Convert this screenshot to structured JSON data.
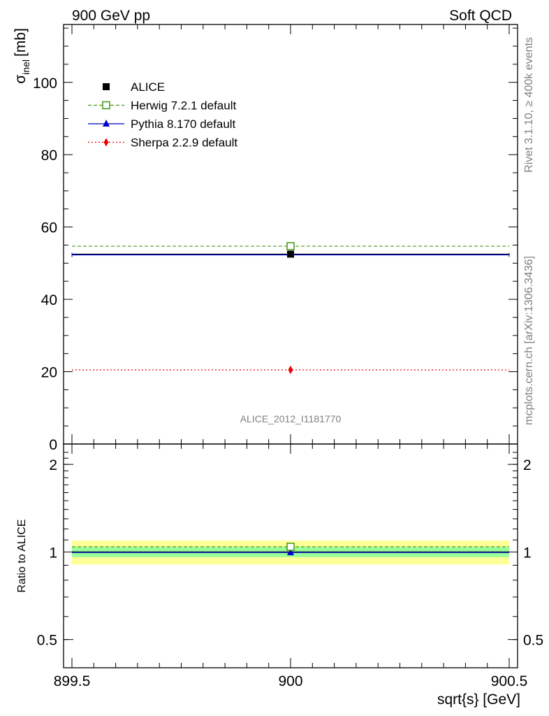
{
  "header": {
    "left": "900 GeV pp",
    "right": "Soft QCD"
  },
  "side": {
    "rivet": "Rivet 3.1.10, ≥ 400k events",
    "mcplots": "mcplots.cern.ch [arXiv:1306.3436]"
  },
  "analysis_id": "ALICE_2012_I1181770",
  "chart_data": [
    {
      "type": "line",
      "panel": "main",
      "ylabel": "σinel [mb]",
      "ylabel_main": "σ",
      "ylabel_sub": "inel",
      "ylabel_unit": "[mb]",
      "xlim": [
        899.5,
        900.5
      ],
      "ylim": [
        0,
        116
      ],
      "yticks": [
        0,
        20,
        40,
        60,
        80,
        100
      ],
      "ytick_labels": [
        "0",
        "20",
        "40",
        "60",
        "80",
        "100"
      ],
      "legend_position": "top-left",
      "series": [
        {
          "name": "ALICE",
          "key": "alice",
          "x": [
            900
          ],
          "y": [
            52.5
          ],
          "color": "#000000",
          "marker": "filled-square",
          "xerr": [
            899.5,
            900.5
          ]
        },
        {
          "name": "Herwig 7.2.1 default",
          "key": "herwig",
          "x": [
            900
          ],
          "y": [
            54.7
          ],
          "color": "#4c9a1c",
          "marker": "open-square",
          "linestyle": "dashed"
        },
        {
          "name": "Pythia 8.170 default",
          "key": "pythia",
          "x": [
            900
          ],
          "y": [
            52.3
          ],
          "color": "#0000cc",
          "marker": "filled-triangle",
          "linestyle": "solid"
        },
        {
          "name": "Sherpa 2.2.9 default",
          "key": "sherpa",
          "x": [
            900
          ],
          "y": [
            20.5
          ],
          "color": "#ee0000",
          "marker": "filled-diamond",
          "linestyle": "dotted"
        }
      ]
    },
    {
      "type": "line",
      "panel": "ratio",
      "ylabel": "Ratio to ALICE",
      "xlabel": "sqrt{s} [GeV]",
      "xlim": [
        899.5,
        900.5
      ],
      "xticks": [
        899.5,
        900,
        900.5
      ],
      "xtick_labels": [
        "899.5",
        "900",
        "900.5"
      ],
      "ylim": [
        0.4,
        2.35
      ],
      "yscale": "log",
      "yticks": [
        0.5,
        1,
        2
      ],
      "ytick_labels": [
        "0.5",
        "1",
        "2"
      ],
      "bands": [
        {
          "name": "total uncertainty",
          "low": 0.905,
          "high": 1.095,
          "color": "#ffff99"
        },
        {
          "name": "statistical uncertainty",
          "low": 0.96,
          "high": 1.04,
          "color": "#99ff99"
        }
      ],
      "series": [
        {
          "name": "Herwig 7.2.1 default",
          "key": "herwig",
          "x": [
            900
          ],
          "y": [
            1.042
          ],
          "color": "#4c9a1c",
          "marker": "open-square",
          "linestyle": "dashed"
        },
        {
          "name": "Pythia 8.170 default",
          "key": "pythia",
          "x": [
            900
          ],
          "y": [
            0.996
          ],
          "color": "#0000cc",
          "marker": "filled-triangle",
          "linestyle": "solid"
        }
      ]
    }
  ]
}
